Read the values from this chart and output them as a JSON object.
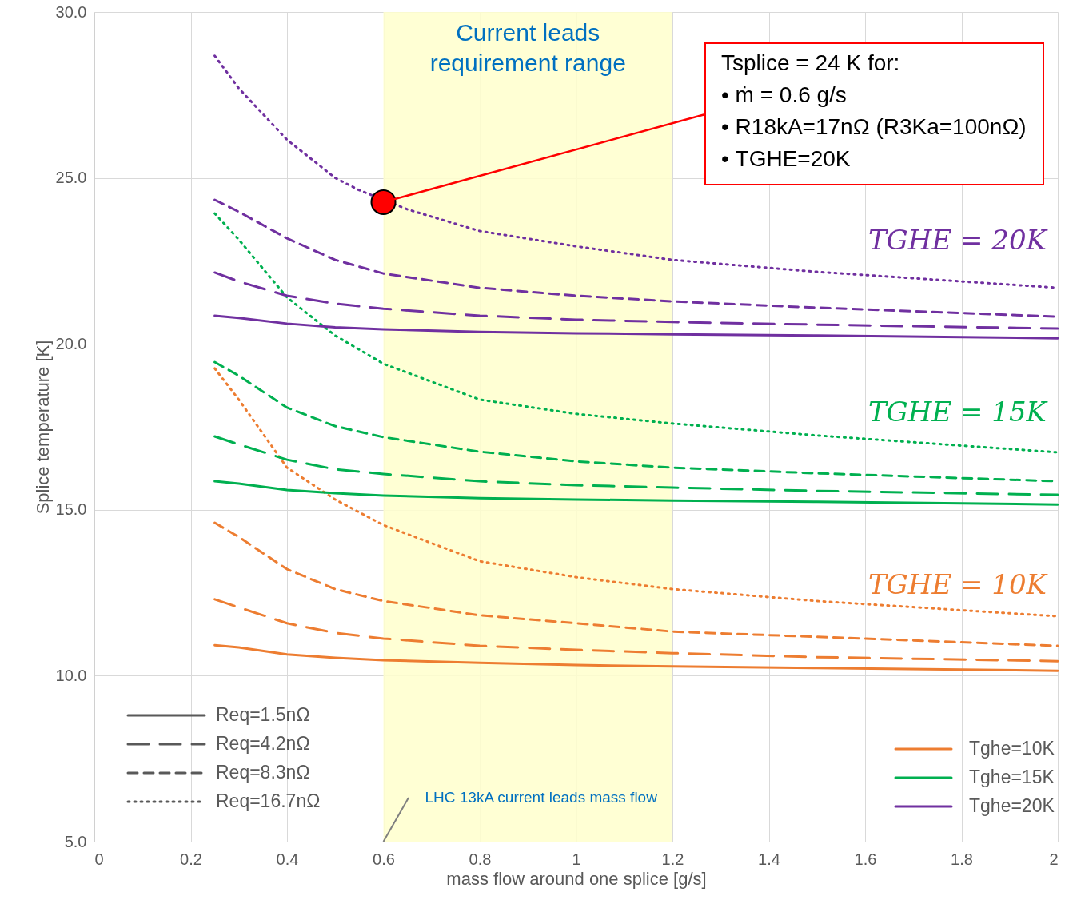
{
  "chart_data": {
    "type": "line",
    "xlabel": "mass flow around one splice [g/s]",
    "ylabel": "Splice temperature [K]",
    "x": [
      0.25,
      0.3,
      0.4,
      0.5,
      0.6,
      0.8,
      1.0,
      1.2,
      1.5,
      2.0
    ],
    "xlim": [
      0,
      2
    ],
    "xticks": [
      0,
      0.2,
      0.4,
      0.6,
      0.8,
      1,
      1.2,
      1.4,
      1.6,
      1.8,
      2
    ],
    "ylim": [
      5,
      30
    ],
    "yticks": [
      {
        "value": 5,
        "label": "5.0"
      },
      {
        "value": 10,
        "label": "10.0"
      },
      {
        "value": 15,
        "label": "15.0"
      },
      {
        "value": 20,
        "label": "20.0"
      },
      {
        "value": 25,
        "label": "25.0"
      },
      {
        "value": 30,
        "label": "30.0"
      }
    ],
    "grid": true,
    "legend": "bottom right",
    "series": [
      {
        "name": "Tghe=10K",
        "color": "#ed7d31",
        "line_style": "solid",
        "values": [
          10.92,
          10.85,
          10.64,
          10.54,
          10.47,
          10.39,
          10.32,
          10.28,
          10.23,
          10.15
        ]
      },
      {
        "color": "#ed7d31",
        "line_style": "longdashed",
        "values": [
          12.3,
          12.06,
          11.58,
          11.29,
          11.12,
          10.9,
          10.78,
          10.68,
          10.56,
          10.44
        ]
      },
      {
        "color": "#ed7d31",
        "line_style": "dashed",
        "values": [
          14.61,
          14.18,
          13.21,
          12.61,
          12.25,
          11.82,
          11.58,
          11.33,
          11.17,
          10.9
        ]
      },
      {
        "color": "#ed7d31",
        "line_style": "dotted",
        "values": [
          19.26,
          18.32,
          16.27,
          15.31,
          14.54,
          13.45,
          12.97,
          12.61,
          12.25,
          11.79
        ]
      },
      {
        "name": "Tghe=15K",
        "color": "#00b050",
        "line_style": "solid",
        "values": [
          15.86,
          15.79,
          15.6,
          15.5,
          15.43,
          15.35,
          15.31,
          15.28,
          15.24,
          15.16
        ]
      },
      {
        "color": "#00b050",
        "line_style": "longdashed",
        "values": [
          17.21,
          16.97,
          16.51,
          16.22,
          16.08,
          15.86,
          15.74,
          15.67,
          15.57,
          15.45
        ]
      },
      {
        "color": "#00b050",
        "line_style": "dashed",
        "values": [
          19.45,
          19.04,
          18.08,
          17.52,
          17.19,
          16.75,
          16.46,
          16.27,
          16.1,
          15.86
        ]
      },
      {
        "color": "#00b050",
        "line_style": "dotted",
        "values": [
          23.93,
          23.14,
          21.4,
          20.25,
          19.4,
          18.32,
          17.89,
          17.6,
          17.24,
          16.73
        ]
      },
      {
        "name": "Tghe=20K",
        "color": "#7030a0",
        "line_style": "solid",
        "values": [
          20.85,
          20.78,
          20.61,
          20.5,
          20.44,
          20.36,
          20.32,
          20.29,
          20.25,
          20.17
        ]
      },
      {
        "color": "#7030a0",
        "line_style": "longdashed",
        "values": [
          22.15,
          21.88,
          21.45,
          21.21,
          21.06,
          20.85,
          20.73,
          20.66,
          20.58,
          20.46
        ]
      },
      {
        "color": "#7030a0",
        "line_style": "dashed",
        "values": [
          24.34,
          23.98,
          23.18,
          22.53,
          22.12,
          21.69,
          21.45,
          21.28,
          21.09,
          20.82
        ]
      },
      {
        "color": "#7030a0",
        "line_style": "dotted",
        "x": [
          0.25,
          0.3,
          0.4,
          0.5,
          0.55,
          0.65,
          0.8,
          1.0,
          1.2,
          1.5,
          2.0
        ],
        "values": [
          28.68,
          27.7,
          26.15,
          25.0,
          24.63,
          24.05,
          23.4,
          22.94,
          22.53,
          22.17,
          21.69
        ]
      },
      {
        "type": "scatter",
        "marker": "circle",
        "color": "#ff0000",
        "x": [
          0.6
        ],
        "values": [
          24.27
        ]
      }
    ],
    "bands": [
      {
        "axis": "x",
        "from": 0.6,
        "to": 1.2,
        "label": "Current leads\nrequirement range",
        "color": "#ffffcc"
      }
    ],
    "annotations": [
      {
        "text": "Tsplice = 24 K for:\n• ṁ = 0.6 g/s\n• R18kA=17nΩ (R3Ka=100nΩ)\n• TGHE=20K",
        "x": 0.6,
        "y": 24.27
      },
      {
        "text": "LHC 13kA current leads mass flow",
        "x": 0.6,
        "y": 5
      },
      "TGHE = 20K",
      "TGHE = 15K",
      "TGHE = 10K",
      "Req=1.5nΩ",
      "Req=4.2nΩ",
      "Req=8.3nΩ",
      "Req=16.7nΩ"
    ]
  }
}
